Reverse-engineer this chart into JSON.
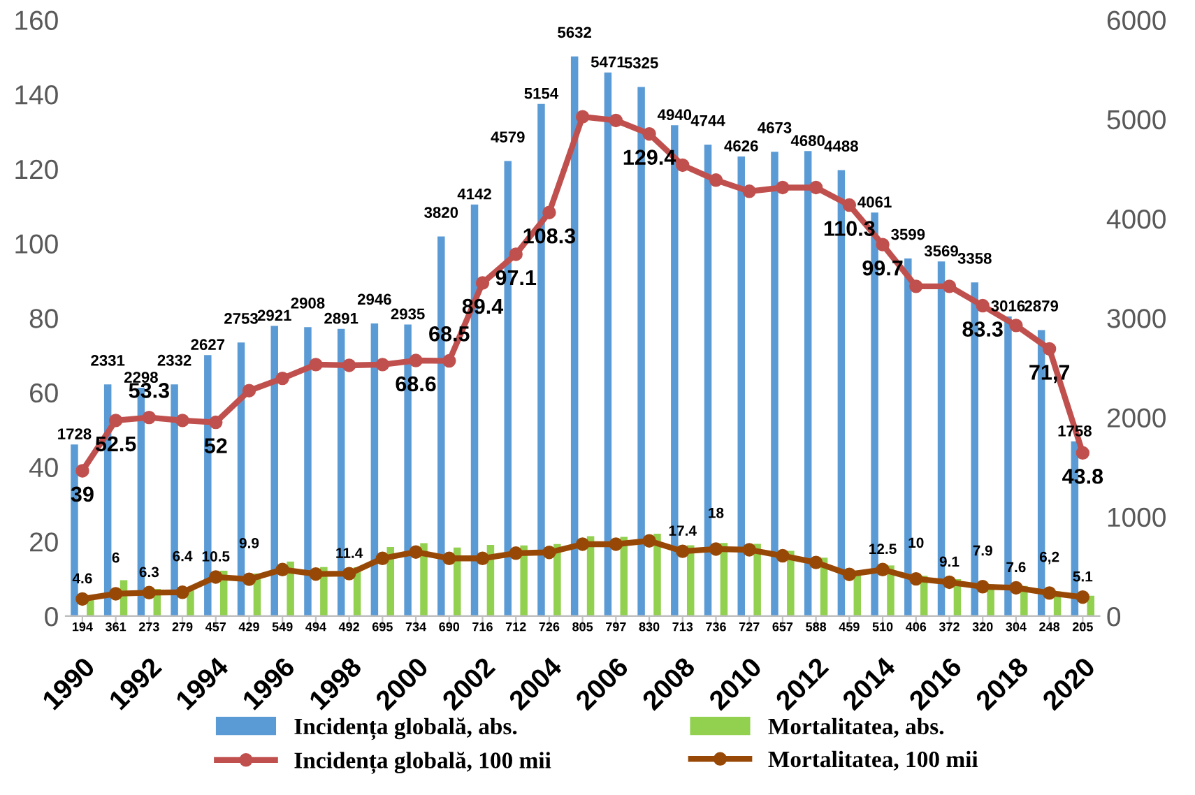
{
  "chart_data": {
    "type": "bar",
    "categories": [
      "1990",
      null,
      "1992",
      null,
      "1994",
      null,
      "1996",
      null,
      "1998",
      null,
      "2000",
      null,
      "2002",
      null,
      "2004",
      null,
      "2006",
      null,
      "2008",
      null,
      "2010",
      null,
      "2012",
      null,
      "2014",
      null,
      "2016",
      null,
      "2018",
      null,
      "2020"
    ],
    "series": [
      {
        "name": "Incidența globală, abs.",
        "axis": "y2",
        "color": "#5b9bd5",
        "values": [
          1728,
          2331,
          2298,
          2332,
          2627,
          2753,
          2921,
          2908,
          2891,
          2946,
          2935,
          3820,
          4142,
          4579,
          5154,
          5632,
          5471,
          5325,
          4940,
          4744,
          4626,
          4673,
          4680,
          4488,
          4061,
          3599,
          3569,
          3358,
          3016,
          2879,
          1758
        ],
        "value_labels": [
          "1728",
          "2331",
          "2298",
          "2332",
          "2627",
          "2753",
          "2921",
          "2908",
          "2891",
          "2946",
          "2935",
          "3820",
          "4142",
          "4579",
          "5154",
          "5632",
          "5471",
          "5325",
          "4940",
          "4744",
          "4626",
          "4673",
          "4680",
          "4488",
          "4061",
          "3599",
          "3569",
          "3358",
          "3016",
          "2879",
          "1758"
        ]
      },
      {
        "name": "Mortalitatea, abs.",
        "axis": "y2",
        "color": "#92d050",
        "values": [
          194,
          361,
          273,
          279,
          457,
          429,
          549,
          494,
          492,
          695,
          734,
          690,
          716,
          712,
          726,
          805,
          797,
          830,
          713,
          736,
          727,
          657,
          588,
          459,
          510,
          406,
          372,
          320,
          304,
          248,
          205
        ],
        "value_labels": [
          "194",
          "361",
          "273",
          "279",
          "457",
          "429",
          "549",
          "494",
          "492",
          "695",
          "734",
          "690",
          "716",
          "712",
          "726",
          "805",
          "797",
          "830",
          "713",
          "736",
          "727",
          "657",
          "588",
          "459",
          "510",
          "406",
          "372",
          "320",
          "304",
          "248",
          "205"
        ]
      },
      {
        "name": "Incidența globală, 100 mii",
        "type": "line",
        "axis": "y",
        "color": "#c0504d",
        "marker": "circle",
        "values": [
          39,
          52.5,
          53.3,
          52.5,
          52,
          60.5,
          63.8,
          67.5,
          67.3,
          67.5,
          68.6,
          68.5,
          89.4,
          97.1,
          108.3,
          134,
          133,
          129.4,
          121,
          117,
          114,
          115,
          115,
          110.3,
          99.7,
          88.5,
          88.5,
          83.3,
          78,
          71.7,
          43.8
        ],
        "value_labels": [
          "39",
          "52.5",
          "53.3",
          null,
          "52",
          null,
          null,
          null,
          null,
          null,
          "68.6",
          "68.5",
          "89.4",
          "97.1",
          "108.3",
          null,
          null,
          "129.4",
          null,
          null,
          null,
          null,
          null,
          "110.3",
          "99.7",
          null,
          null,
          "83.3",
          null,
          "71,7",
          "43.8"
        ]
      },
      {
        "name": "Mortalitatea, 100 mii",
        "type": "line",
        "axis": "y",
        "color": "#984806",
        "marker": "circle",
        "values": [
          4.6,
          6,
          6.3,
          6.4,
          10.5,
          9.9,
          12.5,
          11.3,
          11.4,
          15.5,
          17.2,
          15.5,
          15.5,
          16.9,
          17.1,
          19.3,
          19.3,
          20.2,
          17.4,
          18,
          17.8,
          16.2,
          14.4,
          11.2,
          12.5,
          10,
          9.1,
          7.9,
          7.6,
          6.2,
          5.1
        ],
        "value_labels": [
          "4.6",
          "6",
          "6.3",
          "6.4",
          "10.5",
          "9.9",
          null,
          null,
          "11.4",
          null,
          null,
          null,
          null,
          null,
          null,
          null,
          null,
          null,
          "17.4",
          "18",
          null,
          null,
          null,
          null,
          "12.5",
          "10",
          "9.1",
          "7.9",
          "7.6",
          "6,2",
          "5.1"
        ]
      }
    ],
    "ylim": [
      0,
      160
    ],
    "yticks": [
      0,
      20,
      40,
      60,
      80,
      100,
      120,
      140,
      160
    ],
    "y2lim": [
      0,
      6000
    ],
    "y2ticks": [
      0,
      1000,
      2000,
      3000,
      4000,
      5000,
      6000
    ],
    "grid": false,
    "legend": "bottom"
  }
}
